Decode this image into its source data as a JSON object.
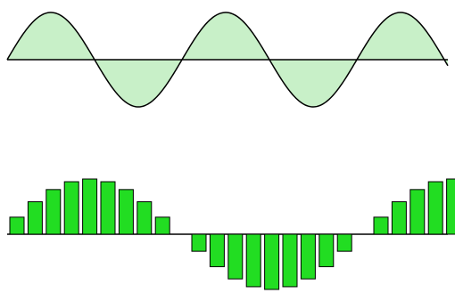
{
  "colors": {
    "background": "#ffffff",
    "wave_fill": "#c8f0c8",
    "wave_stroke": "#000000",
    "bar_fill": "#22dd22",
    "bar_stroke": "#000000",
    "axis": "#000000"
  },
  "continuous_signal": {
    "description_visible": false,
    "cycles": 2.5,
    "phase_offset_rad": 0,
    "amplitude": 1
  },
  "sampled_signal": {
    "bars_per_cycle": 10,
    "num_bars": 25,
    "values": [
      0.309,
      0.588,
      0.809,
      0.951,
      1.0,
      0.951,
      0.809,
      0.588,
      0.309,
      0.0,
      -0.309,
      -0.588,
      -0.809,
      -0.951,
      -1.0,
      -0.951,
      -0.809,
      -0.588,
      -0.309,
      0.0,
      0.309,
      0.588,
      0.809,
      0.951,
      1.0
    ]
  }
}
